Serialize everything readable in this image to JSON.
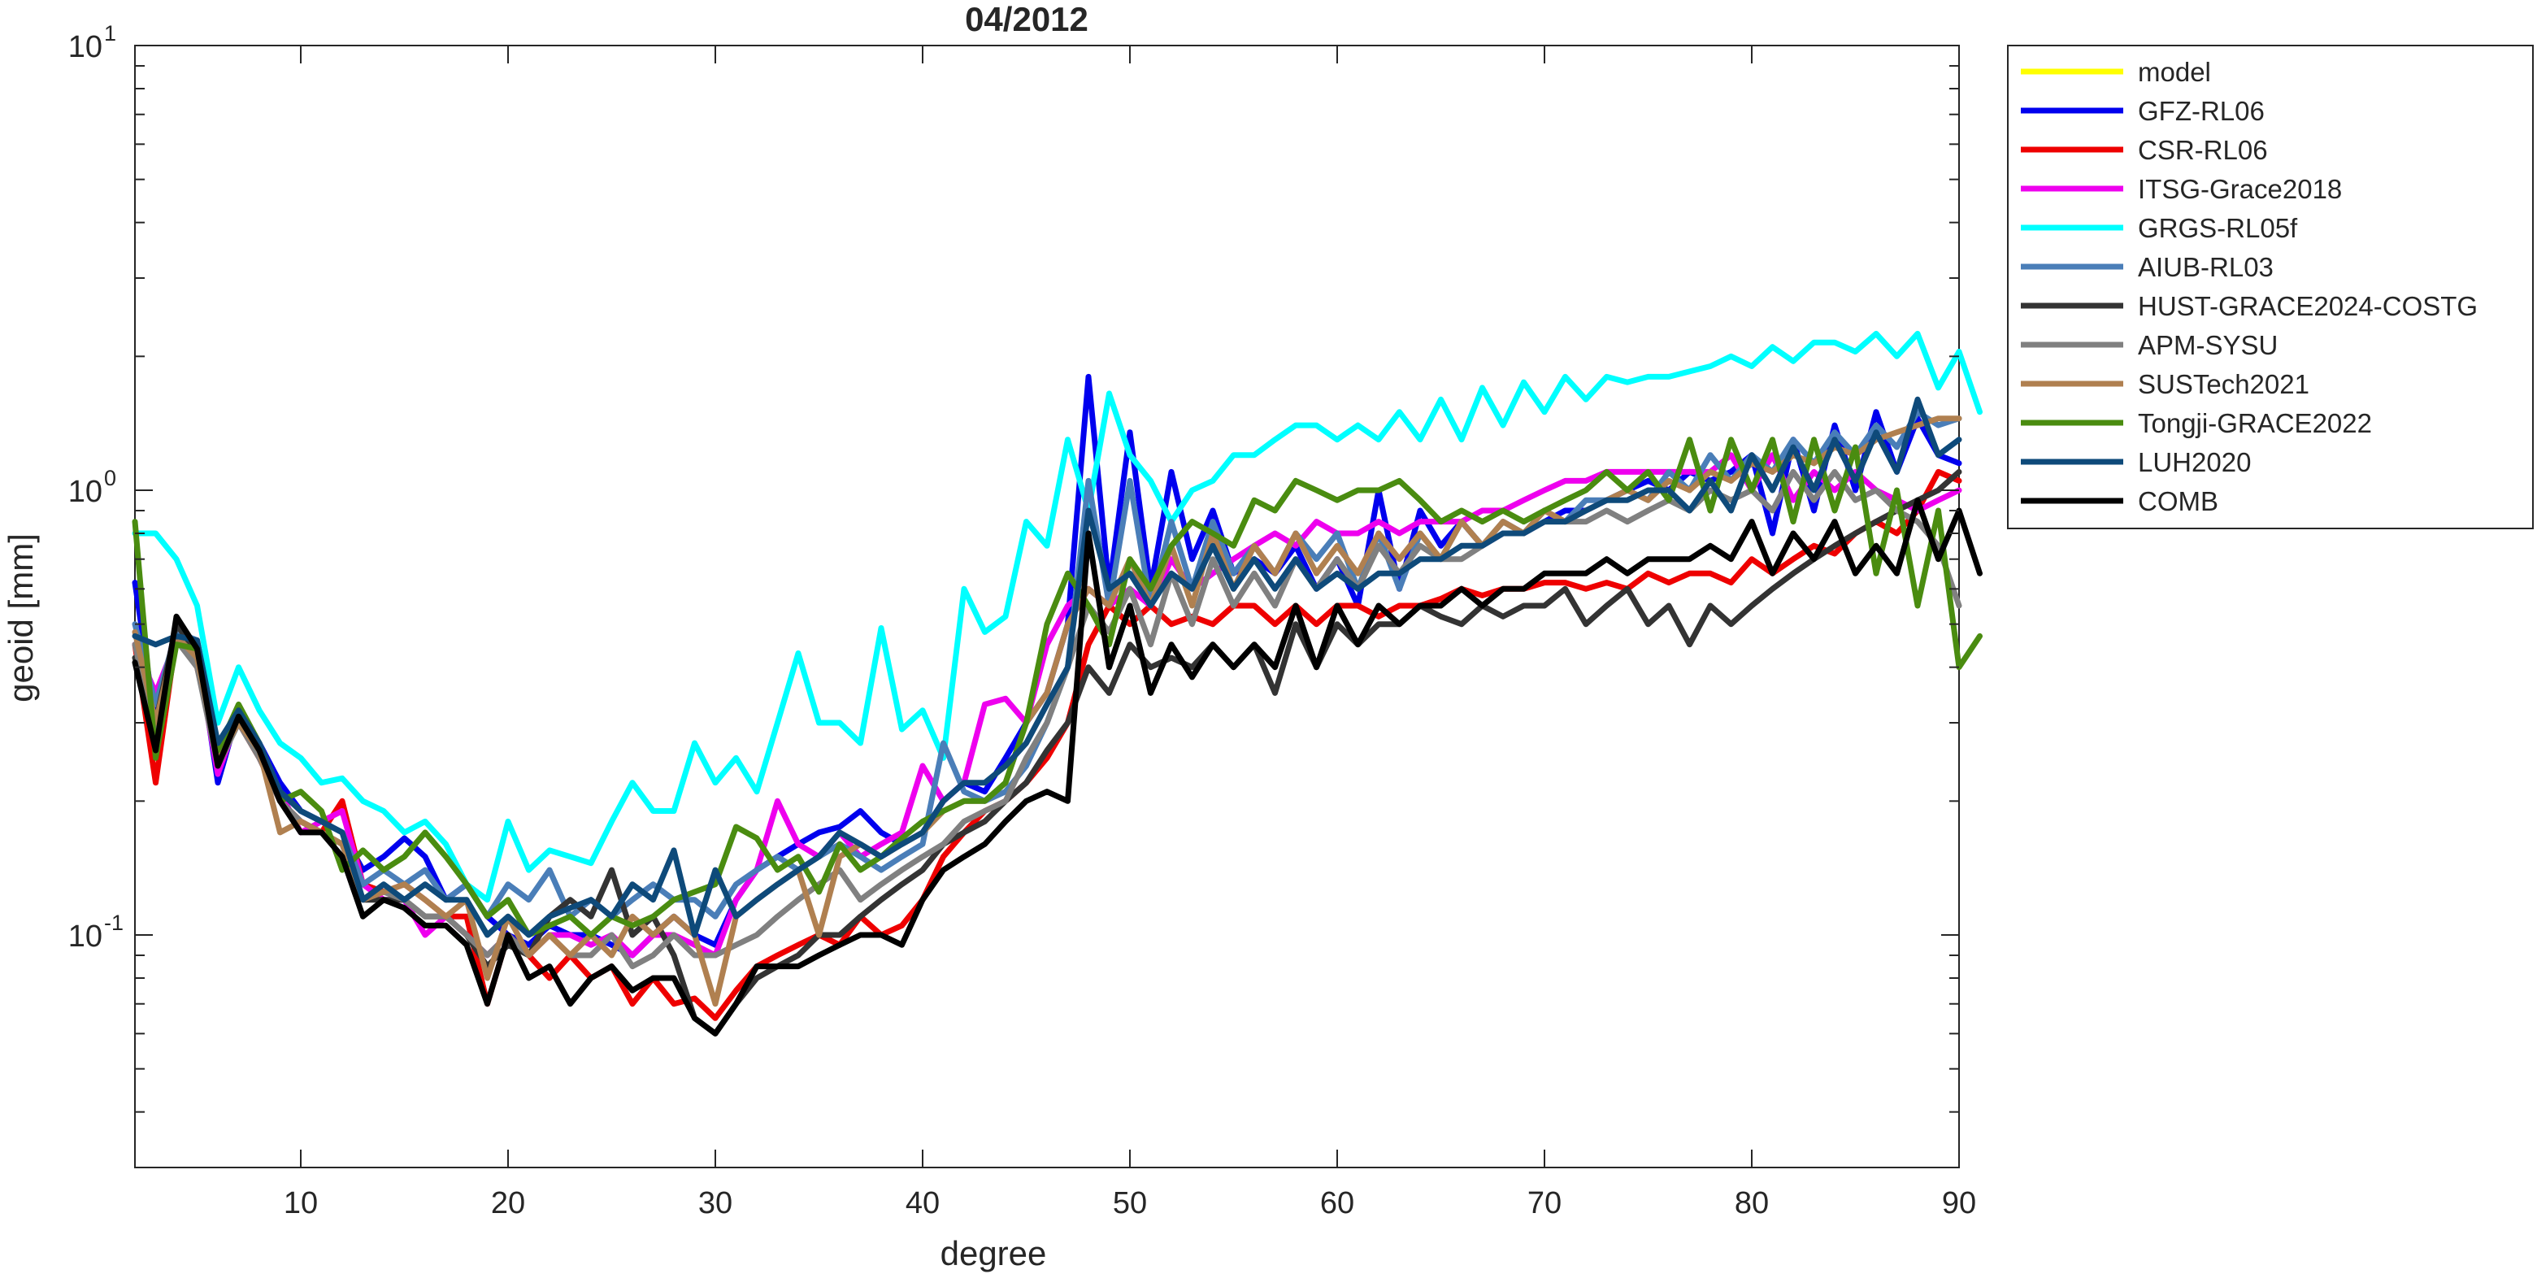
{
  "chart_data": {
    "type": "line",
    "title": "04/2012",
    "xlabel": "degree",
    "ylabel": "geoid [mm]",
    "yscale": "log",
    "xlim": [
      2,
      90
    ],
    "ylim": [
      0.03,
      10
    ],
    "x_ticks": [
      10,
      20,
      30,
      40,
      50,
      60,
      70,
      80,
      90
    ],
    "x_tick_labels": [
      "10",
      "20",
      "30",
      "40",
      "50",
      "60",
      "70",
      "80",
      "90"
    ],
    "y_ticks": [
      {
        "value": 0.1,
        "base": "10",
        "exp": "-1"
      },
      {
        "value": 1,
        "base": "10",
        "exp": "0"
      },
      {
        "value": 10,
        "base": "10",
        "exp": "1"
      }
    ],
    "grid": false,
    "legend_position": "outside-right-top",
    "x_start": 2,
    "x_step": 1,
    "series": [
      {
        "name": "model",
        "color": "#FFFF00",
        "values": []
      },
      {
        "name": "GFZ-RL06",
        "color": "#0000EE",
        "values": [
          0.62,
          0.3,
          0.5,
          0.45,
          0.22,
          0.32,
          0.27,
          0.22,
          0.19,
          0.18,
          0.17,
          0.14,
          0.15,
          0.165,
          0.15,
          0.12,
          0.13,
          0.11,
          0.1,
          0.095,
          0.105,
          0.1,
          0.1,
          0.095,
          0.09,
          0.1,
          0.11,
          0.1,
          0.095,
          0.12,
          0.14,
          0.15,
          0.16,
          0.17,
          0.175,
          0.19,
          0.17,
          0.16,
          0.17,
          0.2,
          0.22,
          0.21,
          0.25,
          0.3,
          0.35,
          0.5,
          1.8,
          0.6,
          1.35,
          0.6,
          1.1,
          0.7,
          0.9,
          0.65,
          0.7,
          0.65,
          0.75,
          0.6,
          0.7,
          0.55,
          1.0,
          0.6,
          0.9,
          0.75,
          0.85,
          0.75,
          0.8,
          0.8,
          0.85,
          0.9,
          0.9,
          0.95,
          1.0,
          1.05,
          1.0,
          1.1,
          1.05,
          1.1,
          1.2,
          0.8,
          1.3,
          0.9,
          1.4,
          1.0,
          1.5,
          1.1,
          1.45,
          1.2,
          1.15
        ]
      },
      {
        "name": "CSR-RL06",
        "color": "#EE0000",
        "values": [
          0.45,
          0.22,
          0.47,
          0.4,
          0.25,
          0.3,
          0.25,
          0.2,
          0.18,
          0.17,
          0.2,
          0.13,
          0.125,
          0.13,
          0.12,
          0.11,
          0.11,
          0.07,
          0.1,
          0.09,
          0.08,
          0.09,
          0.08,
          0.085,
          0.07,
          0.08,
          0.07,
          0.072,
          0.065,
          0.075,
          0.085,
          0.09,
          0.095,
          0.1,
          0.095,
          0.11,
          0.1,
          0.105,
          0.12,
          0.15,
          0.17,
          0.19,
          0.2,
          0.22,
          0.25,
          0.3,
          0.45,
          0.55,
          0.5,
          0.55,
          0.5,
          0.52,
          0.5,
          0.55,
          0.55,
          0.5,
          0.55,
          0.5,
          0.55,
          0.55,
          0.52,
          0.55,
          0.55,
          0.57,
          0.6,
          0.58,
          0.6,
          0.6,
          0.62,
          0.62,
          0.6,
          0.62,
          0.6,
          0.65,
          0.62,
          0.65,
          0.65,
          0.62,
          0.7,
          0.65,
          0.7,
          0.75,
          0.72,
          0.8,
          0.85,
          0.8,
          0.9,
          1.1,
          1.05
        ]
      },
      {
        "name": "ITSG-Grace2018",
        "color": "#EE00EE",
        "values": [
          0.45,
          0.35,
          0.46,
          0.42,
          0.23,
          0.31,
          0.26,
          0.21,
          0.17,
          0.18,
          0.19,
          0.13,
          0.12,
          0.12,
          0.1,
          0.11,
          0.1,
          0.09,
          0.1,
          0.09,
          0.1,
          0.1,
          0.095,
          0.1,
          0.09,
          0.1,
          0.1,
          0.095,
          0.09,
          0.12,
          0.14,
          0.2,
          0.16,
          0.15,
          0.17,
          0.15,
          0.16,
          0.17,
          0.24,
          0.2,
          0.22,
          0.33,
          0.34,
          0.3,
          0.45,
          0.55,
          0.6,
          0.55,
          0.6,
          0.55,
          0.7,
          0.6,
          0.65,
          0.7,
          0.75,
          0.8,
          0.75,
          0.85,
          0.8,
          0.8,
          0.85,
          0.8,
          0.85,
          0.85,
          0.85,
          0.9,
          0.9,
          0.95,
          1.0,
          1.05,
          1.05,
          1.1,
          1.1,
          1.1,
          1.1,
          1.1,
          1.1,
          1.2,
          1.0,
          1.2,
          0.95,
          1.1,
          1.0,
          1.1,
          1.0,
          0.95,
          0.9,
          0.95,
          1.0
        ]
      },
      {
        "name": "GRGS-RL05f",
        "color": "#00FFFF",
        "values": [
          0.8,
          0.8,
          0.7,
          0.55,
          0.3,
          0.4,
          0.32,
          0.27,
          0.25,
          0.22,
          0.225,
          0.2,
          0.19,
          0.17,
          0.18,
          0.16,
          0.13,
          0.12,
          0.18,
          0.14,
          0.155,
          0.15,
          0.145,
          0.18,
          0.22,
          0.19,
          0.19,
          0.27,
          0.22,
          0.25,
          0.21,
          0.3,
          0.43,
          0.3,
          0.3,
          0.27,
          0.49,
          0.29,
          0.32,
          0.25,
          0.6,
          0.48,
          0.52,
          0.85,
          0.75,
          1.3,
          0.9,
          1.65,
          1.2,
          1.05,
          0.85,
          1.0,
          1.05,
          1.2,
          1.2,
          1.3,
          1.4,
          1.4,
          1.3,
          1.4,
          1.3,
          1.5,
          1.3,
          1.6,
          1.3,
          1.7,
          1.4,
          1.75,
          1.5,
          1.8,
          1.6,
          1.8,
          1.75,
          1.8,
          1.8,
          1.85,
          1.9,
          2.0,
          1.9,
          2.1,
          1.95,
          2.15,
          2.15,
          2.05,
          2.25,
          2.0,
          2.25,
          1.7,
          2.05,
          1.5
        ]
      },
      {
        "name": "AIUB-RL03",
        "color": "#4A7EB8",
        "values": [
          0.5,
          0.33,
          0.48,
          0.46,
          0.26,
          0.32,
          0.27,
          0.21,
          0.19,
          0.18,
          0.17,
          0.13,
          0.14,
          0.13,
          0.14,
          0.12,
          0.13,
          0.11,
          0.13,
          0.12,
          0.14,
          0.11,
          0.12,
          0.11,
          0.12,
          0.13,
          0.12,
          0.12,
          0.11,
          0.13,
          0.14,
          0.15,
          0.14,
          0.15,
          0.16,
          0.15,
          0.14,
          0.15,
          0.16,
          0.27,
          0.21,
          0.2,
          0.21,
          0.24,
          0.3,
          0.4,
          1.05,
          0.55,
          1.05,
          0.55,
          0.85,
          0.6,
          0.85,
          0.65,
          0.75,
          0.65,
          0.8,
          0.7,
          0.8,
          0.6,
          0.8,
          0.6,
          0.8,
          0.7,
          0.85,
          0.75,
          0.85,
          0.8,
          0.9,
          0.85,
          0.95,
          0.95,
          1.0,
          0.95,
          1.1,
          1.0,
          1.2,
          1.05,
          1.2,
          1.1,
          1.3,
          1.15,
          1.35,
          1.2,
          1.4,
          1.25,
          1.5,
          1.4,
          1.45
        ]
      },
      {
        "name": "HUST-GRACE2024-COSTG",
        "color": "#333333",
        "values": [
          0.42,
          0.3,
          0.5,
          0.43,
          0.25,
          0.31,
          0.26,
          0.2,
          0.18,
          0.17,
          0.16,
          0.12,
          0.12,
          0.12,
          0.11,
          0.11,
          0.1,
          0.085,
          0.095,
          0.09,
          0.11,
          0.12,
          0.11,
          0.14,
          0.1,
          0.11,
          0.09,
          0.065,
          0.06,
          0.07,
          0.08,
          0.085,
          0.09,
          0.1,
          0.1,
          0.11,
          0.12,
          0.13,
          0.14,
          0.16,
          0.17,
          0.18,
          0.2,
          0.22,
          0.26,
          0.3,
          0.4,
          0.35,
          0.45,
          0.4,
          0.42,
          0.4,
          0.45,
          0.4,
          0.45,
          0.35,
          0.5,
          0.4,
          0.5,
          0.45,
          0.5,
          0.5,
          0.55,
          0.52,
          0.5,
          0.55,
          0.52,
          0.55,
          0.55,
          0.6,
          0.5,
          0.55,
          0.6,
          0.5,
          0.55,
          0.45,
          0.55,
          0.5,
          0.55,
          0.6,
          0.65,
          0.7,
          0.75,
          0.8,
          0.85,
          0.9,
          0.95,
          1.0,
          1.1
        ]
      },
      {
        "name": "APM-SYSU",
        "color": "#808080",
        "values": [
          0.45,
          0.28,
          0.46,
          0.4,
          0.24,
          0.3,
          0.25,
          0.2,
          0.18,
          0.17,
          0.16,
          0.12,
          0.125,
          0.12,
          0.11,
          0.11,
          0.1,
          0.09,
          0.1,
          0.09,
          0.1,
          0.09,
          0.09,
          0.1,
          0.085,
          0.09,
          0.1,
          0.09,
          0.09,
          0.095,
          0.1,
          0.11,
          0.12,
          0.13,
          0.14,
          0.12,
          0.13,
          0.14,
          0.15,
          0.16,
          0.18,
          0.19,
          0.2,
          0.25,
          0.3,
          0.4,
          0.55,
          0.48,
          0.6,
          0.45,
          0.65,
          0.5,
          0.7,
          0.55,
          0.65,
          0.55,
          0.7,
          0.6,
          0.7,
          0.6,
          0.75,
          0.65,
          0.75,
          0.7,
          0.7,
          0.75,
          0.8,
          0.8,
          0.85,
          0.85,
          0.85,
          0.9,
          0.85,
          0.9,
          0.95,
          0.9,
          1.0,
          0.95,
          1.0,
          0.9,
          1.1,
          0.95,
          1.1,
          0.95,
          1.0,
          0.9,
          0.85,
          0.75,
          0.55
        ]
      },
      {
        "name": "SUSTech2021",
        "color": "#B08050",
        "values": [
          0.48,
          0.3,
          0.47,
          0.42,
          0.25,
          0.3,
          0.26,
          0.17,
          0.18,
          0.17,
          0.16,
          0.12,
          0.125,
          0.13,
          0.12,
          0.11,
          0.12,
          0.08,
          0.11,
          0.09,
          0.1,
          0.09,
          0.1,
          0.09,
          0.11,
          0.1,
          0.11,
          0.1,
          0.07,
          0.11,
          0.12,
          0.13,
          0.14,
          0.1,
          0.15,
          0.16,
          0.15,
          0.16,
          0.17,
          0.19,
          0.2,
          0.2,
          0.22,
          0.3,
          0.35,
          0.5,
          0.6,
          0.55,
          0.7,
          0.55,
          0.75,
          0.55,
          0.8,
          0.6,
          0.75,
          0.65,
          0.8,
          0.65,
          0.75,
          0.65,
          0.8,
          0.7,
          0.8,
          0.7,
          0.85,
          0.75,
          0.85,
          0.8,
          0.9,
          0.85,
          0.9,
          0.95,
          1.0,
          0.95,
          1.05,
          1.0,
          1.1,
          1.05,
          1.15,
          1.1,
          1.2,
          1.15,
          1.25,
          1.2,
          1.3,
          1.35,
          1.4,
          1.45,
          1.45
        ]
      },
      {
        "name": "Tongji-GRACE2022",
        "color": "#4A8C10",
        "values": [
          0.85,
          0.25,
          0.45,
          0.44,
          0.26,
          0.33,
          0.27,
          0.2,
          0.21,
          0.19,
          0.14,
          0.155,
          0.14,
          0.15,
          0.17,
          0.15,
          0.13,
          0.11,
          0.12,
          0.1,
          0.105,
          0.11,
          0.1,
          0.11,
          0.105,
          0.11,
          0.12,
          0.125,
          0.13,
          0.175,
          0.165,
          0.14,
          0.15,
          0.125,
          0.16,
          0.14,
          0.15,
          0.165,
          0.18,
          0.19,
          0.2,
          0.2,
          0.22,
          0.3,
          0.5,
          0.65,
          0.55,
          0.45,
          0.7,
          0.6,
          0.75,
          0.85,
          0.8,
          0.75,
          0.95,
          0.9,
          1.05,
          1.0,
          0.95,
          1.0,
          1.0,
          1.05,
          0.95,
          0.85,
          0.9,
          0.85,
          0.9,
          0.85,
          0.9,
          0.95,
          1.0,
          1.1,
          1.0,
          1.1,
          0.95,
          1.3,
          0.9,
          1.3,
          1.0,
          1.3,
          0.85,
          1.3,
          0.9,
          1.25,
          0.65,
          1.0,
          0.55,
          0.9,
          0.4,
          0.47
        ]
      },
      {
        "name": "LUH2020",
        "color": "#0E4A7A",
        "values": [
          0.47,
          0.45,
          0.47,
          0.46,
          0.27,
          0.32,
          0.27,
          0.21,
          0.19,
          0.18,
          0.17,
          0.12,
          0.13,
          0.12,
          0.13,
          0.12,
          0.12,
          0.1,
          0.11,
          0.1,
          0.11,
          0.115,
          0.12,
          0.11,
          0.13,
          0.12,
          0.155,
          0.1,
          0.14,
          0.11,
          0.12,
          0.13,
          0.14,
          0.15,
          0.17,
          0.16,
          0.15,
          0.16,
          0.17,
          0.2,
          0.22,
          0.22,
          0.24,
          0.27,
          0.33,
          0.4,
          0.9,
          0.6,
          0.65,
          0.55,
          0.65,
          0.6,
          0.75,
          0.6,
          0.7,
          0.6,
          0.7,
          0.6,
          0.65,
          0.6,
          0.65,
          0.65,
          0.7,
          0.7,
          0.75,
          0.75,
          0.8,
          0.8,
          0.85,
          0.85,
          0.9,
          0.95,
          0.95,
          1.0,
          1.0,
          0.9,
          1.05,
          0.9,
          1.2,
          1.0,
          1.25,
          1.0,
          1.3,
          1.05,
          1.35,
          1.1,
          1.6,
          1.2,
          1.3
        ]
      },
      {
        "name": "COMB",
        "color": "#000000",
        "values": [
          0.41,
          0.26,
          0.52,
          0.44,
          0.24,
          0.31,
          0.26,
          0.2,
          0.17,
          0.17,
          0.15,
          0.11,
          0.12,
          0.115,
          0.105,
          0.105,
          0.095,
          0.07,
          0.1,
          0.08,
          0.085,
          0.07,
          0.08,
          0.085,
          0.075,
          0.08,
          0.08,
          0.065,
          0.06,
          0.07,
          0.085,
          0.085,
          0.085,
          0.09,
          0.095,
          0.1,
          0.1,
          0.095,
          0.12,
          0.14,
          0.15,
          0.16,
          0.18,
          0.2,
          0.21,
          0.2,
          0.8,
          0.4,
          0.55,
          0.35,
          0.45,
          0.38,
          0.45,
          0.4,
          0.45,
          0.4,
          0.55,
          0.4,
          0.55,
          0.45,
          0.55,
          0.5,
          0.55,
          0.55,
          0.6,
          0.55,
          0.6,
          0.6,
          0.65,
          0.65,
          0.65,
          0.7,
          0.65,
          0.7,
          0.7,
          0.7,
          0.75,
          0.7,
          0.85,
          0.65,
          0.8,
          0.7,
          0.85,
          0.65,
          0.75,
          0.65,
          0.95,
          0.7,
          0.9,
          0.65
        ]
      }
    ]
  }
}
